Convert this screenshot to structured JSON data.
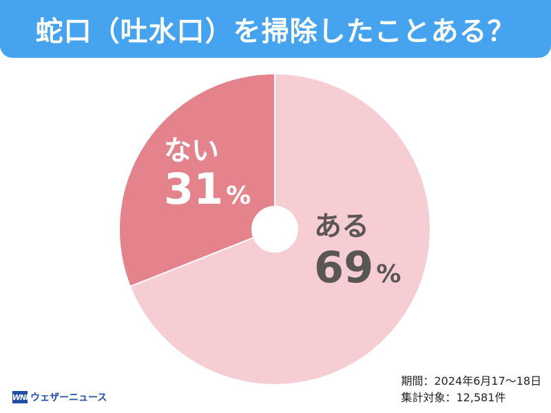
{
  "title": "蛇口（吐水口）を掃除したことある？",
  "chart_data": {
    "type": "pie",
    "title": "蛇口（吐水口）を掃除したことある？",
    "categories": [
      "ある",
      "ない"
    ],
    "values": [
      69,
      31
    ],
    "value_labels": [
      "69%",
      "31%"
    ],
    "colors": [
      "#f5cdd3",
      "#e4838c"
    ],
    "label_colors": [
      "#5a5656",
      "#ffffff"
    ],
    "start": "12 o'clock, clockwise",
    "center_hole": true
  },
  "footer": {
    "logo_mark": "WNI",
    "logo_text": "ウェザーニュース",
    "period": "期間：2024年6月17～18日",
    "sample": "集計対象：12,581件"
  }
}
